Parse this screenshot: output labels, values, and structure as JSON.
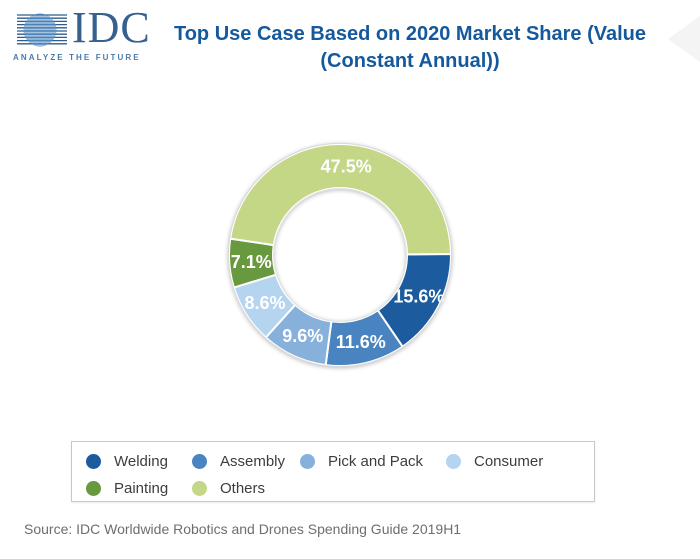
{
  "header": {
    "logo": {
      "text": "IDC",
      "tagline": "ANALYZE THE FUTURE"
    },
    "title_line1": "Top Use Case Based on 2020 Market Share (Value",
    "title_line2": "(Constant Annual))"
  },
  "chart_data": {
    "type": "pie",
    "subtype": "donut",
    "title": "Top Use Case Based on 2020 Market Share (Value (Constant Annual))",
    "unit": "%",
    "start_angle_deg": 0.5,
    "clockwise": true,
    "legend_position": "bottom",
    "segments": [
      {
        "label": "Welding",
        "value": 15.6,
        "display": "15.6%",
        "color": "#1C5B9E"
      },
      {
        "label": "Assembly",
        "value": 11.6,
        "display": "11.6%",
        "color": "#4A84C0"
      },
      {
        "label": "Pick and Pack",
        "value": 9.6,
        "display": "9.6%",
        "color": "#87B1DB"
      },
      {
        "label": "Consumer",
        "value": 8.6,
        "display": "8.6%",
        "color": "#B4D4F0"
      },
      {
        "label": "Painting",
        "value": 7.1,
        "display": "7.1%",
        "color": "#68993E"
      },
      {
        "label": "Others",
        "value": 47.5,
        "display": "47.5%",
        "color": "#C3D787"
      }
    ]
  },
  "source": "Source: IDC Worldwide Robotics and Drones Spending Guide 2019H1",
  "colors": {
    "title": "#15599C",
    "source_text": "#6E6E6E",
    "legend_border": "#C9C9C9",
    "legend_text": "#3D3D3D",
    "logo_text": "#36618F",
    "logo_lines": "#2D5C8F",
    "logo_globe": "#4C83B8",
    "logo_tagline": "#4A7BAD",
    "segment_label_text": "#FFFFFF"
  }
}
